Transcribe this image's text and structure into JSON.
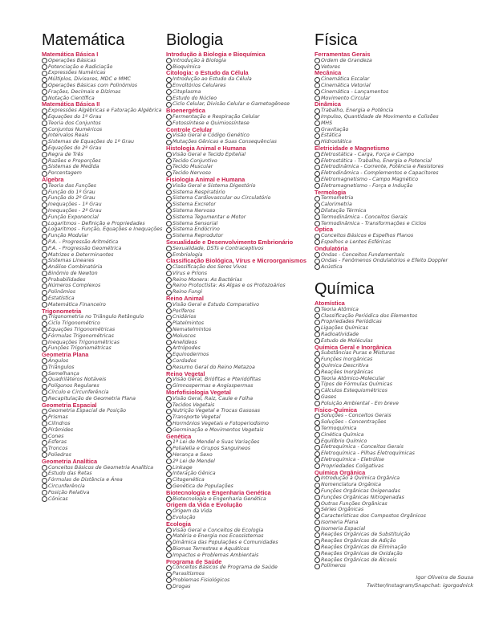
{
  "columns": [
    {
      "title": "Matemática",
      "sections": [
        {
          "name": "Matemática Básica I",
          "items": [
            "Operações Básicas",
            "Potenciação e Radiciação",
            "Expressões Numéricas",
            "Múltiplos, Divisores, MDC e MMC",
            "Operações Básicas com Polinômios",
            "Frações, Decimais e Dízimas",
            "Notação Científica"
          ]
        },
        {
          "name": "Matemática Básica II",
          "items": [
            "Expressões Algébricas e Fatoração Algébrica",
            "Equações do 1º Grau",
            "Teoria dos Conjuntos",
            "Conjuntos Numéricos",
            "Intervalos Reais",
            "Sistemas de Equações do 1º Grau",
            "Equações do 2º Grau",
            "Regra de Três",
            "Razões e Proporções",
            "Sistemas de Medida",
            "Porcentagem"
          ]
        },
        {
          "name": "Álgebra",
          "items": [
            "Teoria das Funções",
            "Função do 1º Grau",
            "Função do 2º Grau",
            "Inequações - 1º Grau",
            "Inequações - 2º Grau",
            "Função Exponencial",
            "Logaritmos - Definição e Propriedades",
            "Logaritmos - Função, Equações e Inequações",
            "Função Modular",
            "P.A. - Progressão Aritmética",
            "P.A. - Progressão Geométrica",
            "Matrizes e Determinantes",
            "Sistemas Lineares",
            "Análise Combinatória",
            "Binômio de Newton",
            "Probabilidades",
            "Números Complexos",
            "Polinômios",
            "Estatística",
            "Matemática Financeiro"
          ]
        },
        {
          "name": "Trigonometria",
          "items": [
            "Trigonometria no Triângulo Retângulo",
            "Ciclo Trigonométrico",
            "Equações Trigonométricas",
            "Fórmulas Trigonométricas",
            "Inequações Trigonométricas",
            "Funções Trigonométricas"
          ]
        },
        {
          "name": "Geometria Plana",
          "items": [
            "Ângulos",
            "Triângulos",
            "Semelhança",
            "Quadriláteros Notáveis",
            "Polígonos Regulares",
            "Círculo e Circunferência",
            "Recapitulação de Geometria Plana"
          ]
        },
        {
          "name": "Geometria Espacial",
          "items": [
            "Geometria Espacial de Posição",
            "Prismas",
            "Cilindros",
            "Pirâmides",
            "Cones",
            "Esferas",
            "Troncos",
            "Poliedros"
          ]
        },
        {
          "name": "Geometria Analítica",
          "items": [
            "Conceitos Básicos de Geometria Analítica",
            "Estudo das Retas",
            "Fórmulas de Distância e Área",
            "Circunferência",
            "Posição Relativa",
            "Cônicas"
          ]
        }
      ]
    },
    {
      "title": "Biologia",
      "sections": [
        {
          "name": "Introdução à Biologia e Bioquímica",
          "items": [
            "Introdução à Biologia",
            "Bioquímica"
          ]
        },
        {
          "name": "Citologia: o Estudo da Célula",
          "items": [
            "Introdução ao Estudo da Célula",
            "Envoltórios Celulares",
            "Citoplasma",
            "Estudo do Núcleo",
            "Ciclo Celular, Divisão Celular e Gametogênese"
          ]
        },
        {
          "name": "Bioenergética",
          "items": [
            "Fermentação e Respiração Celular",
            "Fotossíntese e Quimiossíntese"
          ]
        },
        {
          "name": "Controle Celular",
          "items": [
            "Visão Geral e Código Genético",
            "Mutações Gênicas e Suas Consequências"
          ]
        },
        {
          "name": "Histologia Animal e Humana",
          "items": [
            "Visão Geral e Tecido Epitelial",
            "Tecido Conjuntivo",
            "Tecido Muscular",
            "Tecido Nervoso"
          ]
        },
        {
          "name": "Fisiologia Animal e Humana",
          "items": [
            "Visão Geral e Sistema Digestório",
            "Sistema Respiratório",
            "Sistema Cardiovascular ou Circulatório",
            "Sistema Excretor",
            "Sistema Nervoso",
            "Sistema Tegumentar e Motor",
            "Sistema Sensorial",
            "Sistema Endócrino",
            "Sistema Reprodutor"
          ]
        },
        {
          "name": "Sexualidade e Desenvolvimento Embrionário",
          "items": [
            "Sexualidade, DSTs e Contraceptivos",
            "Embriologia"
          ]
        },
        {
          "name": "Classificação Biológica, Vírus e Microorganismos",
          "items": [
            "Classificação dos Seres Vivos",
            "Vírus e Príons",
            "Reino Monera: As Bactérias",
            "Reino Protoctista: As Algas e os Protozoários",
            "Reino Fungi"
          ]
        },
        {
          "name": "Reino Animal",
          "items": [
            "Visão Geral e Estudo Comparativo",
            "Poríferos",
            "Cnidários",
            "Platelmintos",
            "Nematelmintos",
            "Moluscos",
            "Anelídeos",
            "Artrópodes",
            "Equinodermos",
            "Cordados",
            "Resumo Geral do Reino Metazoa"
          ]
        },
        {
          "name": "Reino Vegetal",
          "items": [
            "Visão Geral, Briófitas e Pteridófitas",
            "Gimnospermas e Angiospermas"
          ]
        },
        {
          "name": "Morfofisiologia Vegetal",
          "items": [
            "Visão Geral, Raiz, Caule e Folha",
            "Tecidos Vegetais",
            "Nutrição Vegetal e Trocas Gasosas",
            "Transporte Vegetal",
            "Hormônios Vegetais e Fotoperiodismo",
            "Germinação e Movimentos Vegetais"
          ]
        },
        {
          "name": "Genética",
          "items": [
            "1ª Lei de Mendel e Suas Variações",
            "Polialelia e Grupos Sanguíneos",
            "Herança e Sexo",
            "2ª Lei de Mendel",
            "Linkage",
            "Interação Gênica",
            "Citogenética",
            "Genética de Populações"
          ]
        },
        {
          "name": "Biotecnologia e Engenharia Genética",
          "items": [
            "Biotecnologia e Engenharia Genética"
          ]
        },
        {
          "name": "Origem da Vida e Evolução",
          "items": [
            "Origem da Vida",
            "Evolução"
          ]
        },
        {
          "name": "Ecologia",
          "items": [
            "Visão Geral e Conceitos de Ecologia",
            "Matéria e Energia nos Ecossistemas",
            "Dinâmica das Populações e Comunidades",
            "Biomas Terrestres e Aquáticos",
            "Impactos e Problemas Ambientais"
          ]
        },
        {
          "name": "Programa de Saúde",
          "items": [
            "Conceitos Básicos de Programa de Saúde",
            "Parasitismos",
            "Problemas Fisiológicos",
            "Drogas"
          ]
        }
      ]
    },
    {
      "title": "Física",
      "sections": [
        {
          "name": "Ferramentas Gerais",
          "items": [
            "Ordem de Grandeza",
            "Vetores"
          ]
        },
        {
          "name": "Mecânica",
          "items": [
            "Cinemática Escalar",
            "Cinemática Vetorial",
            "Cinemática - Lançamentos",
            "Movimento Circular"
          ]
        },
        {
          "name": "Dinâmica",
          "items": [
            "Trabalho, Energia e Potência",
            "Impulso, Quantidade de Movimento e Colisões",
            "MHS",
            "Gravitação",
            "Estática",
            "Hidrostática"
          ]
        },
        {
          "name": "Eletricidade e Magnetismo",
          "items": [
            "Eletrostática - Carga, Força e Campo",
            "Eletrostática - Trabalho, Energia e Potencial",
            "Eletrodinâmica - Corrente, Potência e Resistores",
            "Eletrodinâmica - Complementos e Capacitores",
            "Eletromagnetismo - Campo Magnético",
            "Eletromagnetismo - Força e Indução"
          ]
        },
        {
          "name": "Termologia",
          "items": [
            "Termometria",
            "Calorimetria",
            "Dilatação Térmica",
            "Termodinâmica - Conceitos Gerais",
            "Termodinâmica - Transformações e Ciclos"
          ]
        },
        {
          "name": "Óptica",
          "items": [
            "Conceitos Básicos e Espelhos Planos",
            "Espelhos e Lentes Esféricas"
          ]
        },
        {
          "name": "Ondulatória",
          "items": [
            "Ondas - Conceitos Fundamentais",
            "Ondas - Fenômenos Ondulatórios e Efeito Doppler",
            "Acústica"
          ]
        }
      ]
    },
    {
      "title": "Química",
      "sections": [
        {
          "name": "Atomística",
          "items": [
            "Teoria Atômica",
            "Classificação Periódica dos Elementos",
            "Propriedades Periódicas",
            "Ligações Químicas",
            "Radioatividade",
            "Estudo de Moléculas"
          ]
        },
        {
          "name": "Química Geral e Inorgânica",
          "items": [
            "Substâncias Puras e Misturas",
            "Funções Inorgânicas",
            "Química Descritiva",
            "Reações Inorgânicas",
            "Teoria Atômico-Molecular",
            "Tipos de Fórmulas Químicas",
            "Cálculos Estequiométricos",
            "Gases",
            "Poluição Ambiental - Em breve"
          ]
        },
        {
          "name": "Físico-Química",
          "items": [
            "Soluções - Conceitos Gerais",
            "Soluções - Concentrações",
            "Termoquímica",
            "Cinética Química",
            "Equilíbrio Químico",
            "Eletroquímica - Conceitos Gerais",
            "Eletroquímica - Pilhas Eletroquímicas",
            "Eletroquímica - Eletrólise",
            "Propriedades Coligativas"
          ]
        },
        {
          "name": "Química Orgânica",
          "items": [
            "Introdução à Química Orgânica",
            "Nomenclatura Orgânica",
            "Funções Orgânicas Oxigenadas",
            "Funções Orgânicas Nitrogenadas",
            "Outras Funções Orgânicas",
            "Séries Orgânicas",
            "Características dos Compostos Orgânicos",
            "Isomeria Plana",
            "Isomeria Espacial",
            "Reações Orgânicas de Substituição",
            "Reações Orgânicas de Adição",
            "Reações Orgânicas de Eliminação",
            "Reações Orgânicas de Oxidação",
            "Reações Orgânicas de Álcoois",
            "Polímeros"
          ]
        }
      ]
    }
  ],
  "footer": {
    "author": "Igor Oliveira de Sousa",
    "social": "Twitter/Instagram/Snapchat: igorgodnick"
  },
  "colors": {
    "section_header": "#c8234f",
    "text": "#444444"
  },
  "icons": {
    "bullet": "circle-checkbox-icon"
  }
}
